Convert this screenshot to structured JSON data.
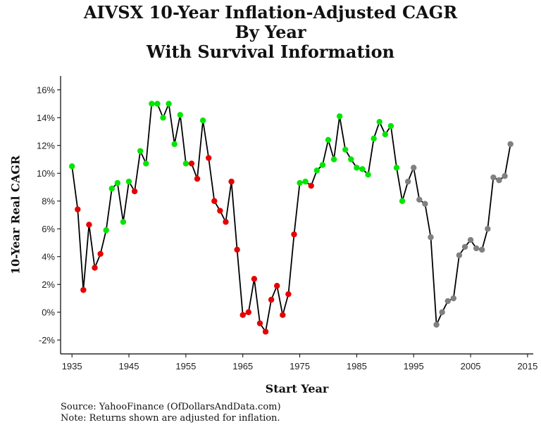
{
  "chart_data": {
    "type": "line",
    "title": [
      "AIVSX 10-Year Inflation-Adjusted CAGR",
      "By Year",
      "With Survival Information"
    ],
    "xlabel": "Start Year",
    "ylabel": "10-Year Real CAGR",
    "xlim": [
      1933,
      2016
    ],
    "ylim": [
      -0.03,
      0.17
    ],
    "x_ticks": [
      1935,
      1945,
      1955,
      1965,
      1975,
      1985,
      1995,
      2005,
      2015
    ],
    "x_tick_labels": [
      "1935",
      "1945",
      "1955",
      "1965",
      "1975",
      "1985",
      "1995",
      "2005",
      "2015"
    ],
    "y_ticks": [
      -0.02,
      0.0,
      0.02,
      0.04,
      0.06,
      0.08,
      0.1,
      0.12,
      0.14,
      0.16
    ],
    "y_tick_labels": [
      "-2%",
      "0%",
      "2%",
      "4%",
      "6%",
      "8%",
      "10%",
      "12%",
      "14%",
      "16%"
    ],
    "grid": false,
    "line_color": "#000000",
    "point_colors": {
      "green": "#00e600",
      "red": "#e60000",
      "gray": "#808080"
    },
    "points": [
      {
        "x": 1935,
        "y": 0.105,
        "c": "green"
      },
      {
        "x": 1936,
        "y": 0.074,
        "c": "red"
      },
      {
        "x": 1937,
        "y": 0.016,
        "c": "red"
      },
      {
        "x": 1938,
        "y": 0.063,
        "c": "red"
      },
      {
        "x": 1939,
        "y": 0.032,
        "c": "red"
      },
      {
        "x": 1940,
        "y": 0.042,
        "c": "red"
      },
      {
        "x": 1941,
        "y": 0.059,
        "c": "green"
      },
      {
        "x": 1942,
        "y": 0.089,
        "c": "green"
      },
      {
        "x": 1943,
        "y": 0.093,
        "c": "green"
      },
      {
        "x": 1944,
        "y": 0.065,
        "c": "green"
      },
      {
        "x": 1945,
        "y": 0.094,
        "c": "green"
      },
      {
        "x": 1946,
        "y": 0.087,
        "c": "red"
      },
      {
        "x": 1947,
        "y": 0.116,
        "c": "green"
      },
      {
        "x": 1948,
        "y": 0.107,
        "c": "green"
      },
      {
        "x": 1949,
        "y": 0.15,
        "c": "green"
      },
      {
        "x": 1950,
        "y": 0.15,
        "c": "green"
      },
      {
        "x": 1951,
        "y": 0.14,
        "c": "green"
      },
      {
        "x": 1952,
        "y": 0.15,
        "c": "green"
      },
      {
        "x": 1953,
        "y": 0.121,
        "c": "green"
      },
      {
        "x": 1954,
        "y": 0.142,
        "c": "green"
      },
      {
        "x": 1955,
        "y": 0.107,
        "c": "green"
      },
      {
        "x": 1956,
        "y": 0.107,
        "c": "red"
      },
      {
        "x": 1957,
        "y": 0.096,
        "c": "red"
      },
      {
        "x": 1958,
        "y": 0.138,
        "c": "green"
      },
      {
        "x": 1959,
        "y": 0.111,
        "c": "red"
      },
      {
        "x": 1960,
        "y": 0.08,
        "c": "red"
      },
      {
        "x": 1961,
        "y": 0.073,
        "c": "red"
      },
      {
        "x": 1962,
        "y": 0.065,
        "c": "red"
      },
      {
        "x": 1963,
        "y": 0.094,
        "c": "red"
      },
      {
        "x": 1964,
        "y": 0.045,
        "c": "red"
      },
      {
        "x": 1965,
        "y": -0.002,
        "c": "red"
      },
      {
        "x": 1966,
        "y": 0.0,
        "c": "red"
      },
      {
        "x": 1967,
        "y": 0.024,
        "c": "red"
      },
      {
        "x": 1968,
        "y": -0.008,
        "c": "red"
      },
      {
        "x": 1969,
        "y": -0.014,
        "c": "red"
      },
      {
        "x": 1970,
        "y": 0.009,
        "c": "red"
      },
      {
        "x": 1971,
        "y": 0.019,
        "c": "red"
      },
      {
        "x": 1972,
        "y": -0.002,
        "c": "red"
      },
      {
        "x": 1973,
        "y": 0.013,
        "c": "red"
      },
      {
        "x": 1974,
        "y": 0.056,
        "c": "red"
      },
      {
        "x": 1975,
        "y": 0.093,
        "c": "green"
      },
      {
        "x": 1976,
        "y": 0.094,
        "c": "green"
      },
      {
        "x": 1977,
        "y": 0.091,
        "c": "red"
      },
      {
        "x": 1978,
        "y": 0.102,
        "c": "green"
      },
      {
        "x": 1979,
        "y": 0.106,
        "c": "green"
      },
      {
        "x": 1980,
        "y": 0.124,
        "c": "green"
      },
      {
        "x": 1981,
        "y": 0.11,
        "c": "green"
      },
      {
        "x": 1982,
        "y": 0.141,
        "c": "green"
      },
      {
        "x": 1983,
        "y": 0.117,
        "c": "green"
      },
      {
        "x": 1984,
        "y": 0.11,
        "c": "green"
      },
      {
        "x": 1985,
        "y": 0.104,
        "c": "green"
      },
      {
        "x": 1986,
        "y": 0.103,
        "c": "green"
      },
      {
        "x": 1987,
        "y": 0.099,
        "c": "green"
      },
      {
        "x": 1988,
        "y": 0.125,
        "c": "green"
      },
      {
        "x": 1989,
        "y": 0.137,
        "c": "green"
      },
      {
        "x": 1990,
        "y": 0.128,
        "c": "green"
      },
      {
        "x": 1991,
        "y": 0.134,
        "c": "green"
      },
      {
        "x": 1992,
        "y": 0.104,
        "c": "green"
      },
      {
        "x": 1993,
        "y": 0.08,
        "c": "green"
      },
      {
        "x": 1994,
        "y": 0.094,
        "c": "gray"
      },
      {
        "x": 1995,
        "y": 0.104,
        "c": "gray"
      },
      {
        "x": 1996,
        "y": 0.081,
        "c": "gray"
      },
      {
        "x": 1997,
        "y": 0.078,
        "c": "gray"
      },
      {
        "x": 1998,
        "y": 0.054,
        "c": "gray"
      },
      {
        "x": 1999,
        "y": -0.009,
        "c": "gray"
      },
      {
        "x": 2000,
        "y": 0.0,
        "c": "gray"
      },
      {
        "x": 2001,
        "y": 0.008,
        "c": "gray"
      },
      {
        "x": 2002,
        "y": 0.01,
        "c": "gray"
      },
      {
        "x": 2003,
        "y": 0.041,
        "c": "gray"
      },
      {
        "x": 2004,
        "y": 0.047,
        "c": "gray"
      },
      {
        "x": 2005,
        "y": 0.052,
        "c": "gray"
      },
      {
        "x": 2006,
        "y": 0.046,
        "c": "gray"
      },
      {
        "x": 2007,
        "y": 0.045,
        "c": "gray"
      },
      {
        "x": 2008,
        "y": 0.06,
        "c": "gray"
      },
      {
        "x": 2009,
        "y": 0.097,
        "c": "gray"
      },
      {
        "x": 2010,
        "y": 0.095,
        "c": "gray"
      },
      {
        "x": 2011,
        "y": 0.098,
        "c": "gray"
      },
      {
        "x": 2012,
        "y": 0.121,
        "c": "gray"
      }
    ]
  },
  "source_line": "Source:  YahooFinance (OfDollarsAndData.com)",
  "note_line": "Note: Returns shown are adjusted for inflation."
}
